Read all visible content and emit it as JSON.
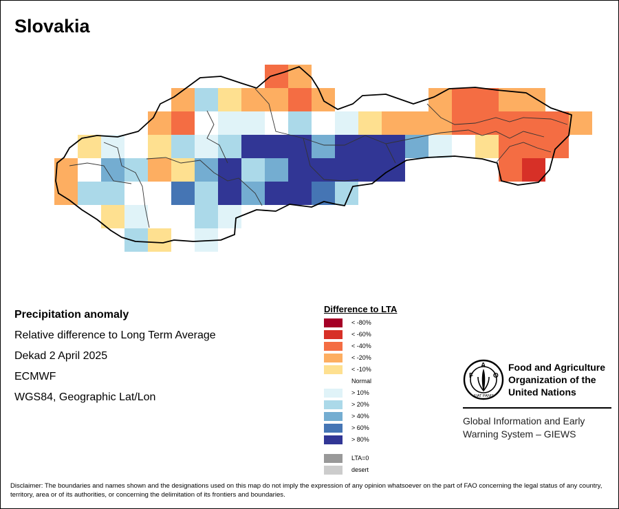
{
  "map": {
    "title": "Slovakia",
    "colors": {
      "lt-80": "#a50026",
      "lt-60": "#d73027",
      "lt-40": "#f46d43",
      "lt-20": "#fdae61",
      "lt-10": "#fee090",
      "normal": "#ffffff",
      "gt10": "#e0f3f8",
      "gt20": "#abd9e9",
      "gt40": "#74add1",
      "gt60": "#4575b4",
      "gt80": "#313695",
      "lta0": "#999999",
      "desert": "#cccccc"
    }
  },
  "info": {
    "line1": "Precipitation anomaly",
    "line2": "Relative difference to Long Term Average",
    "line3": "Dekad 2 April 2025",
    "line4": "ECMWF",
    "line5": "WGS84, Geographic Lat/Lon"
  },
  "legend": {
    "title": "Difference to LTA",
    "items": [
      {
        "label": "< -80%",
        "color": "#a50026"
      },
      {
        "label": "< -60%",
        "color": "#d73027"
      },
      {
        "label": "< -40%",
        "color": "#f46d43"
      },
      {
        "label": "< -20%",
        "color": "#fdae61"
      },
      {
        "label": "< -10%",
        "color": "#fee090"
      },
      {
        "label": "Normal",
        "color": "#ffffff"
      },
      {
        "label": "> 10%",
        "color": "#e0f3f8"
      },
      {
        "label": "> 20%",
        "color": "#abd9e9"
      },
      {
        "label": "> 40%",
        "color": "#74add1"
      },
      {
        "label": "> 60%",
        "color": "#4575b4"
      },
      {
        "label": "> 80%",
        "color": "#313695"
      }
    ],
    "extra": [
      {
        "label": "LTA=0",
        "color": "#999999"
      },
      {
        "label": "desert",
        "color": "#cccccc"
      }
    ]
  },
  "fao": {
    "name_line1": "Food and Agriculture",
    "name_line2": "Organization of the",
    "name_line3": "United Nations",
    "giews_line1": "Global Information and Early",
    "giews_line2": "Warning System – GIEWS",
    "emblem_letters": "FAO",
    "emblem_motto": "FIAT PANIS"
  },
  "disclaimer": {
    "text": "Disclaimer: The boundaries and names shown and the designations used on this map do not imply the expression of any opinion whatsoever on the part of FAO concerning the legal status of any country, territory, area or of its authorities, or concerning the delimitation of its frontiers and boundaries."
  }
}
